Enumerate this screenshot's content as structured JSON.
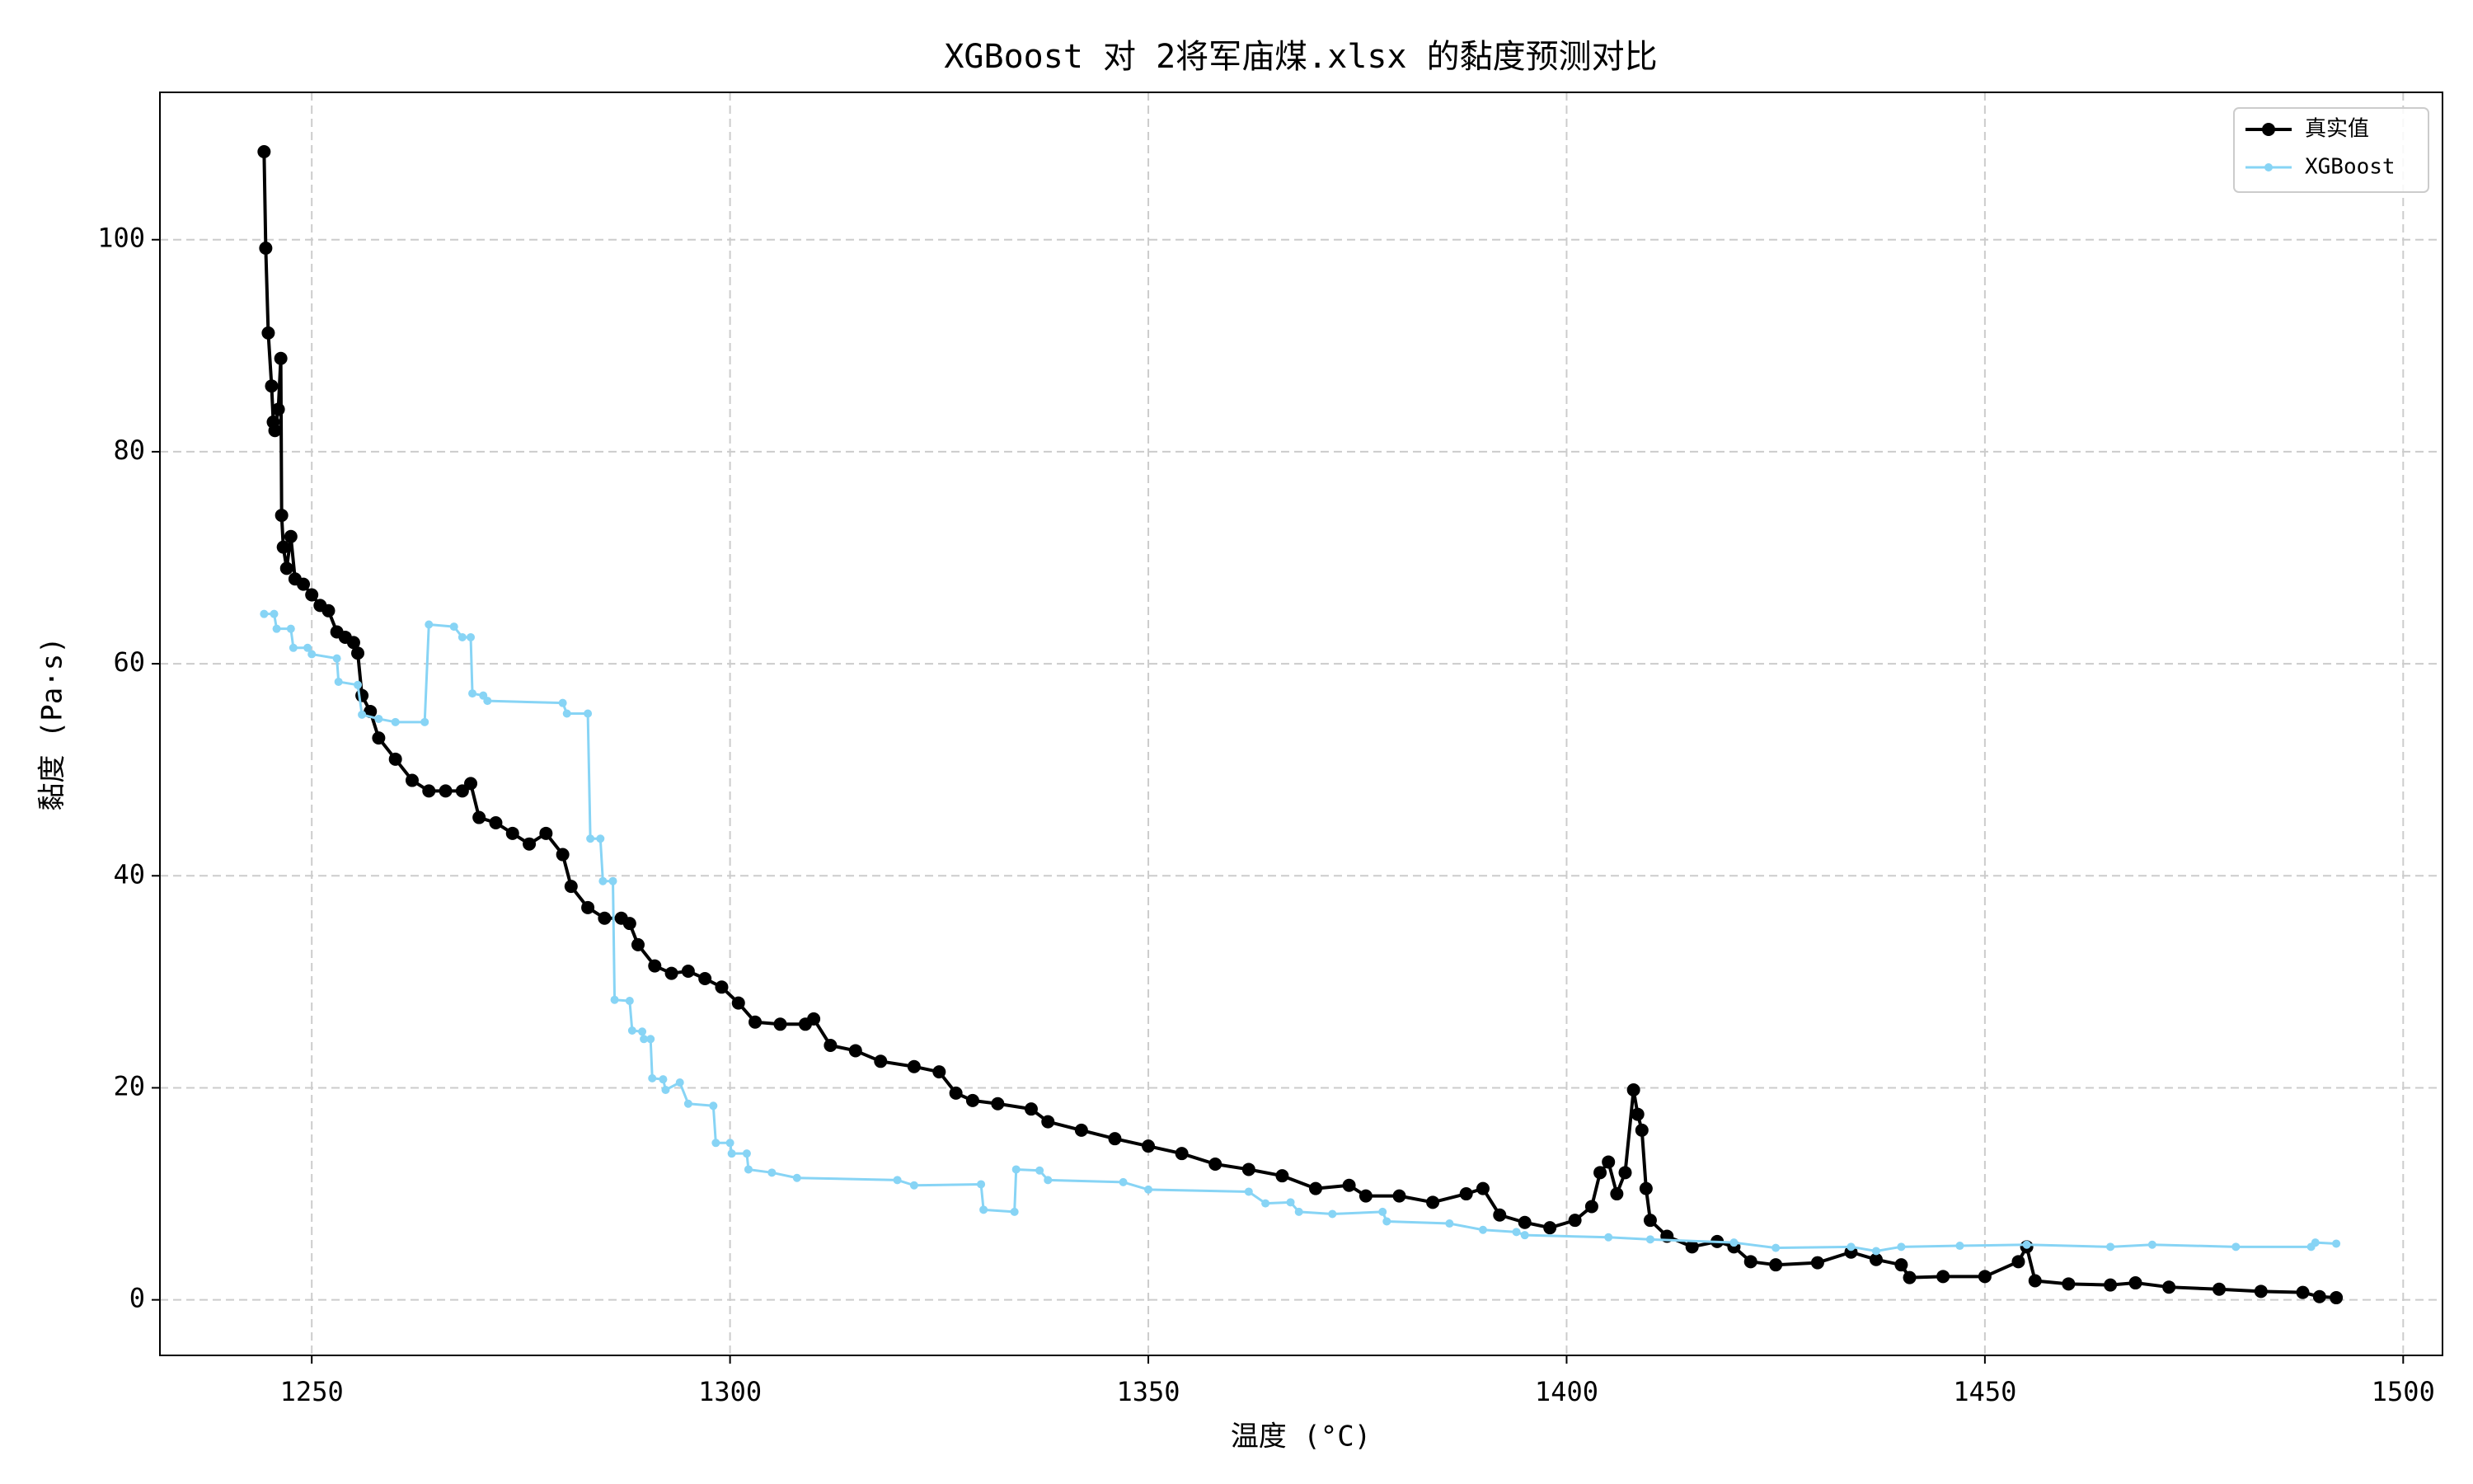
{
  "chart_data": {
    "type": "line",
    "title": "XGBoost 对 2将军庙煤.xlsx 的黏度预测对比",
    "x_label": "温度 (°C)",
    "y_label": "黏度 (Pa·s)",
    "xlim": [
      1231.85,
      1504.7
    ],
    "ylim": [
      -5.24,
      113.9
    ],
    "xticks": [
      1250,
      1300,
      1350,
      1400,
      1450,
      1500
    ],
    "yticks": [
      0,
      20,
      40,
      60,
      80,
      100
    ],
    "grid": true,
    "legend": "upper-right",
    "series": [
      {
        "name": "真实值",
        "color": "#000000",
        "x": [
          1244.3,
          1244.5,
          1244.8,
          1245.2,
          1245.4,
          1245.6,
          1246,
          1246.3,
          1246.4,
          1246.6,
          1247,
          1247.5,
          1248,
          1249,
          1250,
          1251,
          1252,
          1253,
          1254,
          1255,
          1255.5,
          1256,
          1257,
          1258,
          1260,
          1262,
          1264,
          1266,
          1268,
          1269,
          1270,
          1272,
          1274,
          1276,
          1278,
          1280,
          1281,
          1283,
          1285,
          1287,
          1288,
          1289,
          1291,
          1293,
          1295,
          1297,
          1299,
          1301,
          1303,
          1306,
          1309,
          1310,
          1312,
          1315,
          1318,
          1322,
          1325,
          1327,
          1329,
          1332,
          1336,
          1338,
          1342,
          1346,
          1350,
          1354,
          1358,
          1362,
          1366,
          1370,
          1374,
          1376,
          1380,
          1384,
          1388,
          1390,
          1392,
          1395,
          1398,
          1401,
          1403,
          1404,
          1405,
          1406,
          1407,
          1408,
          1408.5,
          1409,
          1409.5,
          1410,
          1412,
          1415,
          1418,
          1420,
          1422,
          1425,
          1430,
          1434,
          1437,
          1440,
          1441,
          1445,
          1450,
          1454,
          1455,
          1456,
          1460,
          1465,
          1468,
          1472,
          1478,
          1483,
          1488,
          1490,
          1492
        ],
        "values": [
          108.3,
          99.2,
          91.2,
          86.2,
          82.8,
          82.0,
          84,
          88.8,
          74,
          71,
          69,
          72,
          68,
          67.5,
          66.5,
          65.5,
          65,
          63,
          62.5,
          62,
          61,
          57,
          55.5,
          53,
          51,
          49,
          48,
          48,
          48,
          48.7,
          45.5,
          45,
          44,
          43,
          44,
          42,
          39,
          37,
          36,
          36,
          35.5,
          33.5,
          31.5,
          30.8,
          31,
          30.3,
          29.5,
          28,
          26.2,
          26,
          26,
          26.5,
          24,
          23.5,
          22.5,
          22,
          21.5,
          19.5,
          18.8,
          18.5,
          18,
          16.8,
          16,
          15.2,
          14.5,
          13.8,
          12.8,
          12.3,
          11.7,
          10.5,
          10.8,
          9.8,
          9.8,
          9.2,
          10,
          10.5,
          8,
          7.3,
          6.8,
          7.5,
          8.8,
          12,
          13,
          10,
          12,
          19.8,
          17.5,
          16,
          10.5,
          7.5,
          6,
          5,
          5.5,
          5,
          3.6,
          3.3,
          3.5,
          4.5,
          3.8,
          3.3,
          2.1,
          2.2,
          2.2,
          3.6,
          5.0,
          1.8,
          1.5,
          1.4,
          1.6,
          1.2,
          1.0,
          0.8,
          0.7,
          0.3,
          0.2
        ]
      },
      {
        "name": "XGBoost",
        "color": "#87d4f5",
        "x": [
          1244.3,
          1245.5,
          1245.8,
          1247.5,
          1247.8,
          1249.5,
          1250,
          1253,
          1253.2,
          1255.5,
          1256,
          1258,
          1260,
          1263.5,
          1264,
          1267,
          1268,
          1269,
          1269.2,
          1270.5,
          1271,
          1280,
          1280.5,
          1283,
          1283.3,
          1284.5,
          1284.8,
          1286,
          1286.2,
          1288,
          1288.3,
          1289.5,
          1289.7,
          1290.5,
          1290.7,
          1292,
          1292.3,
          1294,
          1295,
          1298,
          1298.3,
          1300,
          1300.2,
          1302,
          1302.2,
          1305,
          1308,
          1320,
          1322,
          1330,
          1330.3,
          1334,
          1334.2,
          1337,
          1338,
          1347,
          1350,
          1362,
          1364,
          1367,
          1368,
          1372,
          1378,
          1378.5,
          1386,
          1390,
          1394,
          1395,
          1405,
          1410,
          1420,
          1425,
          1434,
          1437,
          1440,
          1447,
          1455,
          1465,
          1470,
          1480,
          1489,
          1489.5,
          1492
        ],
        "values": [
          64.7,
          64.7,
          63.3,
          63.3,
          61.5,
          61.5,
          60.9,
          60.5,
          58.3,
          58,
          55.2,
          54.8,
          54.5,
          54.5,
          63.7,
          63.5,
          62.5,
          62.5,
          57.2,
          57,
          56.5,
          56.3,
          55.3,
          55.3,
          43.5,
          43.5,
          39.5,
          39.5,
          28.3,
          28.2,
          25.4,
          25.3,
          24.6,
          24.6,
          20.9,
          20.8,
          19.8,
          20.5,
          18.5,
          18.3,
          14.8,
          14.8,
          13.8,
          13.8,
          12.3,
          12,
          11.5,
          11.3,
          10.8,
          10.9,
          8.5,
          8.3,
          12.3,
          12.2,
          11.3,
          11.1,
          10.4,
          10.2,
          9.1,
          9.2,
          8.3,
          8.1,
          8.3,
          7.4,
          7.2,
          6.6,
          6.4,
          6.1,
          5.9,
          5.7,
          5.4,
          4.9,
          5,
          4.6,
          5,
          5.1,
          5.2,
          5.0,
          5.2,
          5.0,
          5.0,
          5.4,
          5.3
        ]
      }
    ]
  }
}
